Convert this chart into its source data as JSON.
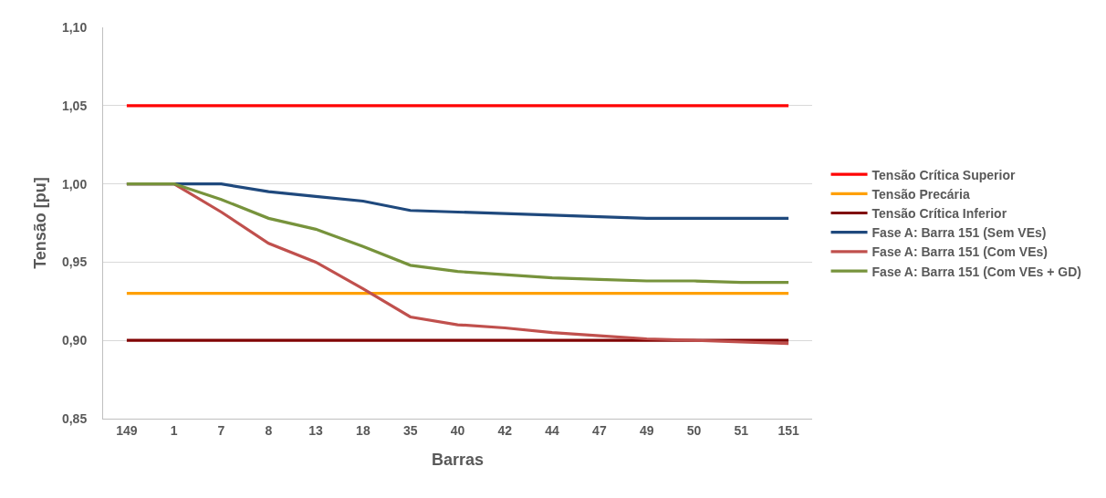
{
  "chart_data": {
    "type": "line",
    "xlabel": "Barras",
    "ylabel": "Tensão [pu]",
    "categories": [
      "149",
      "1",
      "7",
      "8",
      "13",
      "18",
      "35",
      "40",
      "42",
      "44",
      "47",
      "49",
      "50",
      "51",
      "151"
    ],
    "ylim": [
      0.85,
      1.1
    ],
    "yticks": [
      {
        "value": 0.85,
        "label": "0,85"
      },
      {
        "value": 0.9,
        "label": "0,90"
      },
      {
        "value": 0.95,
        "label": "0,95"
      },
      {
        "value": 1.0,
        "label": "1,00"
      },
      {
        "value": 1.05,
        "label": "1,05"
      },
      {
        "value": 1.1,
        "label": "1,10"
      }
    ],
    "grid": "y",
    "legend": "right",
    "marker": "none",
    "line_style": "solid",
    "series": [
      {
        "name": "Tensão Crítica Superior",
        "color": "#ff0000",
        "values": [
          1.05,
          1.05,
          1.05,
          1.05,
          1.05,
          1.05,
          1.05,
          1.05,
          1.05,
          1.05,
          1.05,
          1.05,
          1.05,
          1.05,
          1.05
        ]
      },
      {
        "name": "Tensão Precária",
        "color": "#ffa000",
        "values": [
          0.93,
          0.93,
          0.93,
          0.93,
          0.93,
          0.93,
          0.93,
          0.93,
          0.93,
          0.93,
          0.93,
          0.93,
          0.93,
          0.93,
          0.93
        ]
      },
      {
        "name": "Tensão Crítica Inferior",
        "color": "#800000",
        "values": [
          0.9,
          0.9,
          0.9,
          0.9,
          0.9,
          0.9,
          0.9,
          0.9,
          0.9,
          0.9,
          0.9,
          0.9,
          0.9,
          0.9,
          0.9
        ]
      },
      {
        "name": "Fase A: Barra 151 (Sem VEs)",
        "color": "#1f497d",
        "values": [
          1.0,
          1.0,
          1.0,
          0.995,
          0.992,
          0.989,
          0.983,
          0.982,
          0.981,
          0.98,
          0.979,
          0.978,
          0.978,
          0.978,
          0.978
        ]
      },
      {
        "name": "Fase A: Barra 151 (Com VEs)",
        "color": "#c0504d",
        "values": [
          1.0,
          1.0,
          0.982,
          0.962,
          0.95,
          0.933,
          0.915,
          0.91,
          0.908,
          0.905,
          0.903,
          0.901,
          0.9,
          0.899,
          0.898
        ]
      },
      {
        "name": "Fase A: Barra 151 (Com VEs + GD)",
        "color": "#77933c",
        "values": [
          1.0,
          1.0,
          0.99,
          0.978,
          0.971,
          0.96,
          0.948,
          0.944,
          0.942,
          0.94,
          0.939,
          0.938,
          0.938,
          0.937,
          0.937
        ]
      }
    ]
  }
}
